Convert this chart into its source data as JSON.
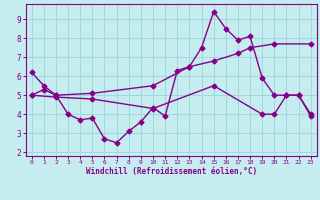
{
  "xlabel": "Windchill (Refroidissement éolien,°C)",
  "xlim": [
    -0.5,
    23.5
  ],
  "ylim": [
    1.8,
    9.8
  ],
  "yticks": [
    2,
    3,
    4,
    5,
    6,
    7,
    8,
    9
  ],
  "xticks": [
    0,
    1,
    2,
    3,
    4,
    5,
    6,
    7,
    8,
    9,
    10,
    11,
    12,
    13,
    14,
    15,
    16,
    17,
    18,
    19,
    20,
    21,
    22,
    23
  ],
  "background_color": "#c5ecee",
  "grid_color": "#a0d8dc",
  "line_color": "#880088",
  "line1_x": [
    0,
    1,
    2,
    3,
    4,
    5,
    6,
    7,
    8,
    9,
    10,
    11,
    12,
    13,
    14,
    15,
    16,
    17,
    18,
    19,
    20,
    21,
    22,
    23
  ],
  "line1_y": [
    6.2,
    5.5,
    5.0,
    4.0,
    3.7,
    3.8,
    2.7,
    2.5,
    3.1,
    3.6,
    4.35,
    3.9,
    6.3,
    6.5,
    7.5,
    9.4,
    8.5,
    7.9,
    8.1,
    5.9,
    5.0,
    5.0,
    5.0,
    3.9
  ],
  "line2_x": [
    0,
    1,
    2,
    5,
    10,
    13,
    15,
    17,
    18,
    20,
    23
  ],
  "line2_y": [
    5.0,
    5.3,
    5.0,
    5.1,
    5.5,
    6.5,
    6.8,
    7.2,
    7.5,
    7.7,
    7.7
  ],
  "line3_x": [
    0,
    2,
    5,
    10,
    15,
    19,
    20,
    21,
    22,
    23
  ],
  "line3_y": [
    5.0,
    4.9,
    4.8,
    4.3,
    5.5,
    4.0,
    4.0,
    5.0,
    5.0,
    4.0
  ],
  "marker": "D",
  "marker_size": 2.5,
  "linewidth": 1.0
}
